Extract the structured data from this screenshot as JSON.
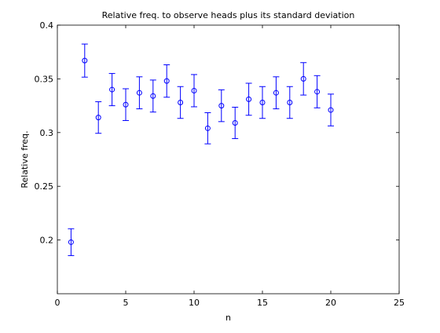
{
  "chart_data": {
    "type": "scatter",
    "title": "Relative freq. to observe heads plus its standard deviation",
    "xlabel": "n",
    "ylabel": "Relative freq.",
    "xlim": [
      0,
      25
    ],
    "ylim": [
      0.15,
      0.4
    ],
    "xticks": [
      0,
      5,
      10,
      15,
      20,
      25
    ],
    "yticks": [
      0.2,
      0.25,
      0.3,
      0.35,
      0.4
    ],
    "xtick_labels": [
      "0",
      "5",
      "10",
      "15",
      "20",
      "25"
    ],
    "ytick_labels": [
      "0.2",
      "0.25",
      "0.3",
      "0.35",
      "0.4"
    ],
    "grid": false,
    "marker": "circle",
    "series_color": "#0000ff",
    "series": [
      {
        "name": "relative frequency",
        "x": [
          1,
          2,
          3,
          4,
          5,
          6,
          7,
          8,
          9,
          10,
          11,
          12,
          13,
          14,
          15,
          16,
          17,
          18,
          19,
          20
        ],
        "y": [
          0.198,
          0.367,
          0.314,
          0.34,
          0.326,
          0.337,
          0.334,
          0.348,
          0.328,
          0.339,
          0.304,
          0.325,
          0.309,
          0.331,
          0.328,
          0.337,
          0.328,
          0.35,
          0.338,
          0.321
        ],
        "yerr": [
          0.0125,
          0.0154,
          0.0147,
          0.015,
          0.0148,
          0.0149,
          0.0149,
          0.0151,
          0.0148,
          0.015,
          0.0145,
          0.0148,
          0.0146,
          0.0149,
          0.0148,
          0.0149,
          0.0148,
          0.0151,
          0.015,
          0.0148
        ]
      }
    ]
  }
}
